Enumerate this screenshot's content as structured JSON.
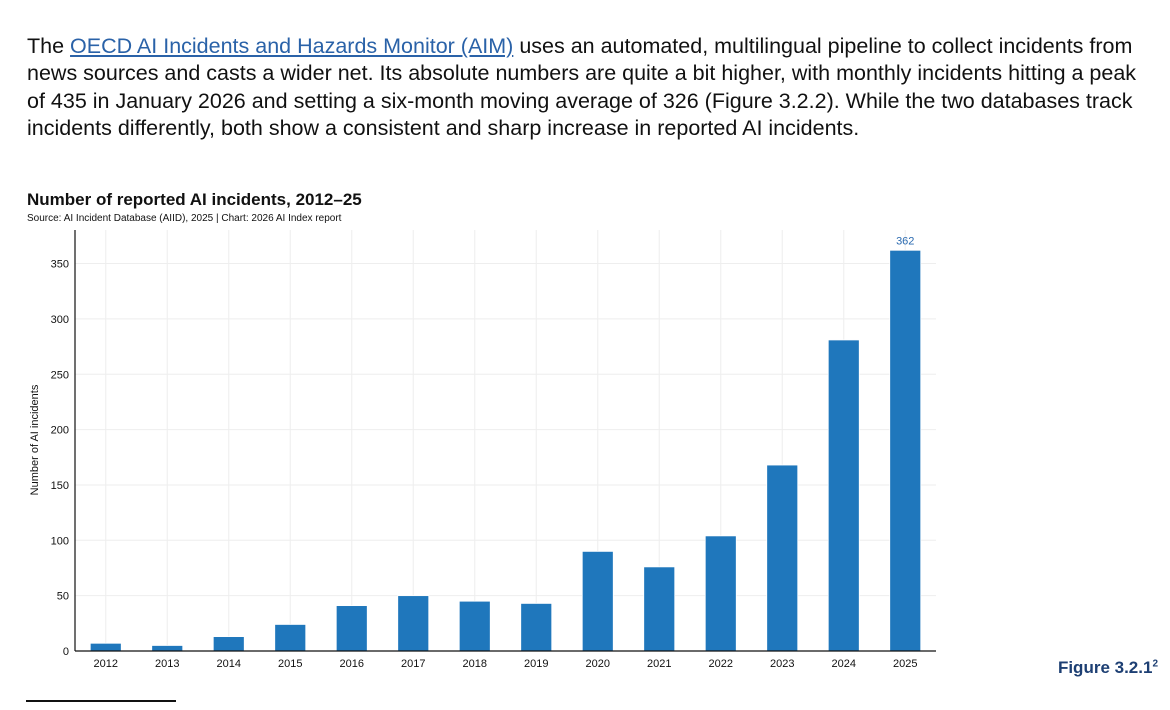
{
  "paragraph": {
    "link_text": "OECD AI Incidents and Hazards Monitor (AIM)",
    "text_after_link": " uses an automated, multilingual pipeline to collect incidents from news sources and casts a wider net. Its absolute numbers are quite a bit higher, with monthly incidents hitting a peak of 435 in January 2026 and setting a six-month moving average of 326 (Figure 3.2.2). While the two databases track incidents differently, both show a consistent and sharp increase in reported AI incidents.",
    "text_before_link": "The "
  },
  "figure_label": "Figure 3.2.1",
  "figure_footnote_mark": "2",
  "chart_data": {
    "type": "bar",
    "title": "Number of reported AI incidents, 2012–25",
    "subtitle": "Source: AI Incident Database (AIID), 2025 | Chart: 2026 AI Index report",
    "xlabel": "",
    "ylabel": "Number of AI incidents",
    "categories": [
      "2012",
      "2013",
      "2014",
      "2015",
      "2016",
      "2017",
      "2018",
      "2019",
      "2020",
      "2021",
      "2022",
      "2023",
      "2024",
      "2025"
    ],
    "values": [
      7,
      5,
      13,
      24,
      41,
      50,
      45,
      43,
      90,
      76,
      104,
      168,
      281,
      362
    ],
    "data_labels": {
      "2025": "362"
    },
    "ylim": [
      0,
      380
    ],
    "yticks": [
      0,
      50,
      100,
      150,
      200,
      250,
      300,
      350
    ],
    "grid": true,
    "bar_color": "#1f77bc",
    "label_color": "#2a6ab0"
  }
}
